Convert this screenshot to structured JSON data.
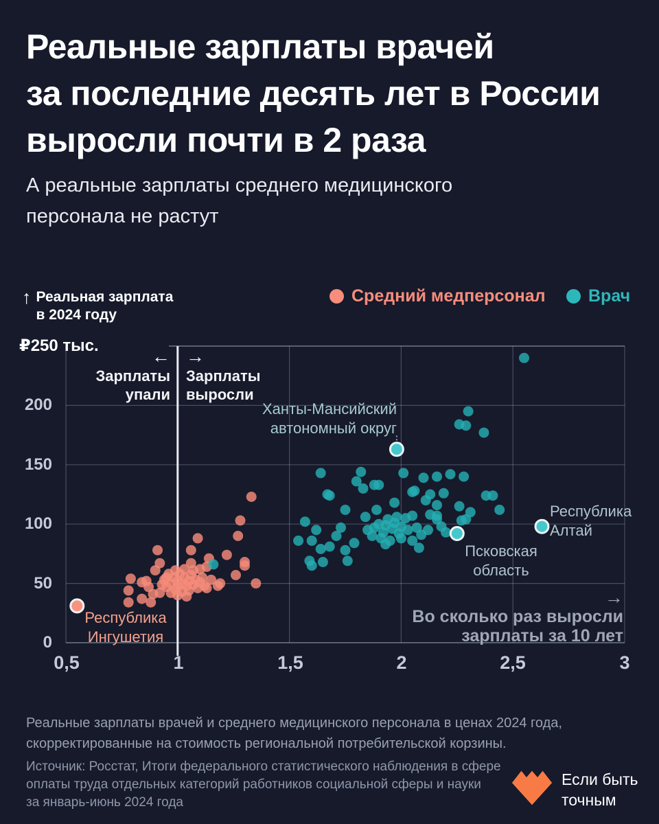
{
  "title": {
    "line1": "Реальные зарплаты врачей",
    "line2": "за последние десять лет в России",
    "line3": "выросли почти в 2 раза"
  },
  "subtitle": {
    "line1": "А реальные зарплаты среднего медицинского",
    "line2": "персонала не растут"
  },
  "legend": {
    "items": [
      {
        "label": "Средний медперсонал",
        "color": "#f88d7c"
      },
      {
        "label": "Врач",
        "color": "#2eb7ba"
      }
    ]
  },
  "y_annotation": {
    "arrow": "↑",
    "line1": "Реальная зарплата",
    "line2": "в 2024 году"
  },
  "quadrants": {
    "left_arrow": "←",
    "left_line1": "Зарплаты",
    "left_line2": "упали",
    "right_arrow": "→",
    "right_line1": "Зарплаты",
    "right_line2": "выросли"
  },
  "x_annotation": {
    "arrow": "→",
    "line1": "Во сколько раз выросли",
    "line2": "зарплаты за 10 лет"
  },
  "region_labels": {
    "khanty": {
      "line1": "Ханты-Мансийский",
      "line2": "автономный округ"
    },
    "altai": {
      "line1": "Республика",
      "line2": "Алтай"
    },
    "pskov": {
      "line1": "Псковская",
      "line2": "область"
    },
    "ingushetia": {
      "line1": "Республика",
      "line2": "Ингушетия"
    }
  },
  "footnote": {
    "line1": "Реальные зарплаты врачей и среднего медицинского персонала в ценах 2024 года,",
    "line2": "скорректированные на стоимость региональной потребительской корзины."
  },
  "source": {
    "line1": "Источник: Росстат, Итоги федерального статистического наблюдения в сфере",
    "line2": "оплаты труда отдельных категорий работников социальной сферы и науки",
    "line3": "за январь-июнь 2024 года"
  },
  "logo": {
    "line1": "Если быть",
    "line2": "точным",
    "color": "#f87b45"
  },
  "chart_data": {
    "type": "scatter",
    "title": "Реальные зарплаты врачей за последние десять лет в России выросли почти в 2 раза",
    "x_axis": {
      "label": "Во сколько раз выросли зарплаты за 10 лет",
      "ticks": [
        "0,5",
        "1",
        "1,5",
        "2",
        "2,5",
        "3"
      ],
      "tick_values": [
        0.5,
        1,
        1.5,
        2,
        2.5,
        3
      ],
      "range": [
        0.5,
        3
      ]
    },
    "y_axis": {
      "label": "Реальная зарплата в 2024 году, тыс. ₽",
      "ticks": [
        "0",
        "50",
        "100",
        "150",
        "200"
      ],
      "tick_values": [
        0,
        50,
        100,
        150,
        200
      ],
      "top_tick": "₽250 тыс.",
      "range": [
        0,
        250
      ]
    },
    "baseline_x": 1,
    "grid": true,
    "legend_position": "top-right",
    "series": [
      {
        "name": "Средний медперсонал",
        "color": "#f78b7a",
        "highlight_color": "#f9937f",
        "points": [
          [
            1.33,
            123
          ],
          [
            1.28,
            103
          ],
          [
            1.27,
            90
          ],
          [
            1.09,
            88
          ],
          [
            0.91,
            78
          ],
          [
            0.92,
            67
          ],
          [
            1.06,
            78
          ],
          [
            1.22,
            74
          ],
          [
            1.3,
            65
          ],
          [
            1.06,
            67
          ],
          [
            1.1,
            62
          ],
          [
            0.9,
            61
          ],
          [
            1.26,
            57
          ],
          [
            1.35,
            50
          ],
          [
            1.18,
            48
          ],
          [
            1.3,
            68
          ],
          [
            1.13,
            64
          ],
          [
            1.15,
            53
          ],
          [
            1.19,
            50
          ],
          [
            0.79,
            54
          ],
          [
            0.78,
            44
          ],
          [
            0.78,
            34
          ],
          [
            0.84,
            51
          ],
          [
            0.84,
            37
          ],
          [
            0.86,
            52
          ],
          [
            0.88,
            34
          ],
          [
            0.92,
            42
          ],
          [
            0.95,
            55
          ],
          [
            1.13,
            46
          ],
          [
            0.97,
            50
          ],
          [
            0.98,
            55
          ],
          [
            0.99,
            45
          ],
          [
            1.0,
            52
          ],
          [
            1.0,
            47
          ],
          [
            1.01,
            58
          ],
          [
            1.02,
            50
          ],
          [
            1.02,
            43
          ],
          [
            1.03,
            55
          ],
          [
            1.04,
            48
          ],
          [
            1.05,
            52
          ],
          [
            1.05,
            44
          ],
          [
            1.06,
            57
          ],
          [
            1.07,
            49
          ],
          [
            1.08,
            53
          ],
          [
            1.09,
            46
          ],
          [
            1.1,
            51
          ],
          [
            1.11,
            55
          ],
          [
            1.12,
            48
          ],
          [
            0.96,
            58
          ],
          [
            0.95,
            47
          ],
          [
            0.94,
            53
          ],
          [
            0.93,
            49
          ],
          [
            0.99,
            61
          ],
          [
            1.03,
            62
          ],
          [
            1.07,
            61
          ],
          [
            1.0,
            40
          ],
          [
            1.04,
            39
          ],
          [
            0.97,
            42
          ],
          [
            1.14,
            71
          ],
          [
            0.89,
            41
          ],
          [
            0.87,
            47
          ]
        ]
      },
      {
        "name": "Врач",
        "color": "#23aeb2",
        "highlight_color": "#45c8cd",
        "points": [
          [
            2.55,
            240
          ],
          [
            2.3,
            195
          ],
          [
            2.26,
            184
          ],
          [
            2.29,
            183
          ],
          [
            2.37,
            177
          ],
          [
            1.64,
            143
          ],
          [
            1.82,
            144
          ],
          [
            1.8,
            136
          ],
          [
            1.88,
            133
          ],
          [
            2.01,
            143
          ],
          [
            2.1,
            139
          ],
          [
            2.16,
            140
          ],
          [
            2.22,
            142
          ],
          [
            2.28,
            140
          ],
          [
            1.67,
            125
          ],
          [
            1.68,
            124
          ],
          [
            1.75,
            112
          ],
          [
            1.83,
            130
          ],
          [
            1.9,
            133
          ],
          [
            1.97,
            118
          ],
          [
            1.98,
            106
          ],
          [
            2.05,
            127
          ],
          [
            2.06,
            128
          ],
          [
            2.11,
            120
          ],
          [
            2.13,
            125
          ],
          [
            2.16,
            116
          ],
          [
            2.16,
            107
          ],
          [
            2.19,
            126
          ],
          [
            2.26,
            115
          ],
          [
            2.29,
            104
          ],
          [
            2.31,
            110
          ],
          [
            2.38,
            124
          ],
          [
            2.41,
            124
          ],
          [
            2.44,
            112
          ],
          [
            2.13,
            108
          ],
          [
            2.16,
            104
          ],
          [
            2.27,
            103
          ],
          [
            1.57,
            102
          ],
          [
            1.54,
            86
          ],
          [
            1.62,
            95
          ],
          [
            1.6,
            86
          ],
          [
            1.68,
            81
          ],
          [
            1.59,
            69
          ],
          [
            1.65,
            68
          ],
          [
            1.64,
            79
          ],
          [
            1.75,
            78
          ],
          [
            1.76,
            69
          ],
          [
            1.79,
            84
          ],
          [
            1.6,
            65
          ],
          [
            1.84,
            106
          ],
          [
            1.85,
            95
          ],
          [
            1.89,
            112
          ],
          [
            1.92,
            93
          ],
          [
            1.95,
            86
          ],
          [
            2.02,
            105
          ],
          [
            2.05,
            107
          ],
          [
            2.05,
            86
          ],
          [
            2.08,
            80
          ],
          [
            1.16,
            66
          ],
          [
            1.71,
            90
          ],
          [
            1.73,
            97
          ],
          [
            1.87,
            90
          ],
          [
            1.9,
            100
          ],
          [
            1.93,
            99
          ],
          [
            1.96,
            96
          ],
          [
            1.99,
            92
          ],
          [
            2.0,
            98
          ],
          [
            1.97,
            101
          ],
          [
            2.03,
            95
          ],
          [
            1.91,
            88
          ],
          [
            1.94,
            104
          ],
          [
            2.07,
            97
          ],
          [
            2.0,
            88
          ],
          [
            1.88,
            97
          ],
          [
            1.93,
            83
          ],
          [
            2.09,
            91
          ],
          [
            2.12,
            95
          ],
          [
            2.18,
            98
          ],
          [
            2.2,
            93
          ]
        ]
      }
    ],
    "highlights": [
      {
        "region": "Ханты-Мансийский автономный округ",
        "series": "Врач",
        "x": 1.98,
        "y": 163
      },
      {
        "region": "Псковская область",
        "series": "Врач",
        "x": 2.25,
        "y": 92
      },
      {
        "region": "Республика Алтай",
        "series": "Врач",
        "x": 2.63,
        "y": 98
      },
      {
        "region": "Республика Ингушетия",
        "series": "Средний медперсонал",
        "x": 0.55,
        "y": 31
      }
    ]
  }
}
